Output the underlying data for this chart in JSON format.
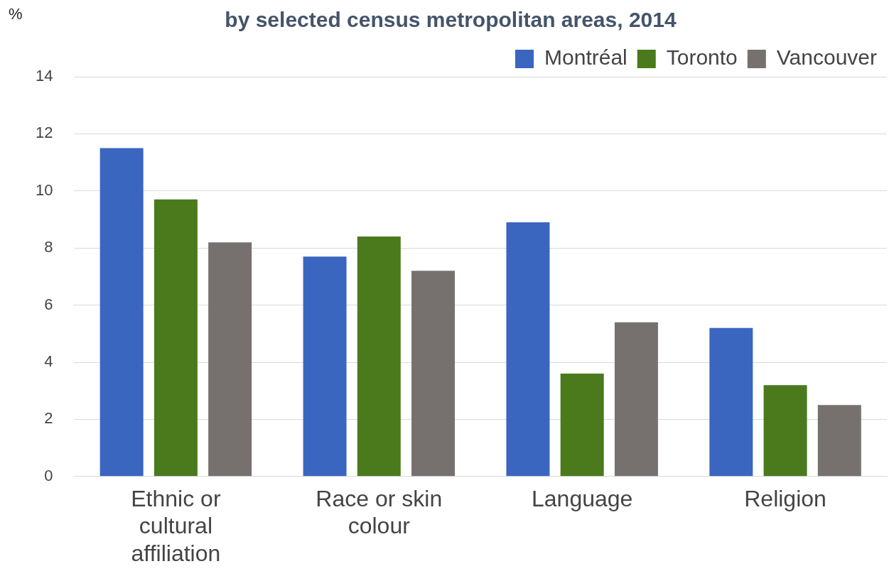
{
  "chart_data": {
    "type": "bar",
    "title": "by selected census metropolitan areas, 2014",
    "ylabel": "%",
    "categories": [
      "Ethnic or cultural affiliation",
      "Race or skin colour",
      "Language",
      "Religion"
    ],
    "series": [
      {
        "name": "Montréal",
        "color": "#3a66c0",
        "values": [
          11.5,
          7.7,
          8.9,
          5.2
        ]
      },
      {
        "name": "Toronto",
        "color": "#4a7a1c",
        "values": [
          9.7,
          8.4,
          3.6,
          3.2
        ]
      },
      {
        "name": "Vancouver",
        "color": "#76716f",
        "values": [
          8.2,
          7.2,
          5.4,
          2.5
        ]
      }
    ],
    "ylim": [
      0,
      14
    ],
    "yticks": [
      0,
      2,
      4,
      6,
      8,
      10,
      12,
      14
    ],
    "grid": "y",
    "legend": "top right"
  }
}
